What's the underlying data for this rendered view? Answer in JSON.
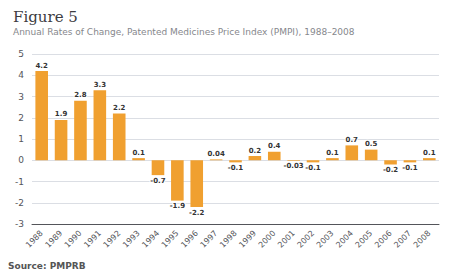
{
  "chart_data": {
    "type": "bar",
    "title": "Figure 5",
    "subtitle": "Annual Rates of Change, Patented Medicines Price Index (PMPI), 1988–2008",
    "annotations": [
      "Source: PMPRB"
    ],
    "categories": [
      "1988",
      "1989",
      "1990",
      "1991",
      "1992",
      "1993",
      "1994",
      "1995",
      "1996",
      "1997",
      "1998",
      "1999",
      "2000",
      "2001",
      "2002",
      "2003",
      "2004",
      "2005",
      "2006",
      "2007",
      "2008"
    ],
    "values": [
      4.2,
      1.9,
      2.8,
      3.3,
      2.2,
      0.1,
      -0.7,
      -1.9,
      -2.2,
      0.04,
      -0.1,
      0.2,
      0.4,
      -0.03,
      -0.1,
      0.1,
      0.7,
      0.5,
      -0.2,
      -0.1,
      0.1
    ],
    "color": "#f0a030",
    "ylim": [
      -3,
      5
    ],
    "yticks": [
      -3,
      -2,
      -1,
      0,
      1,
      2,
      3,
      4,
      5
    ],
    "grid": true,
    "data_labels": true
  }
}
